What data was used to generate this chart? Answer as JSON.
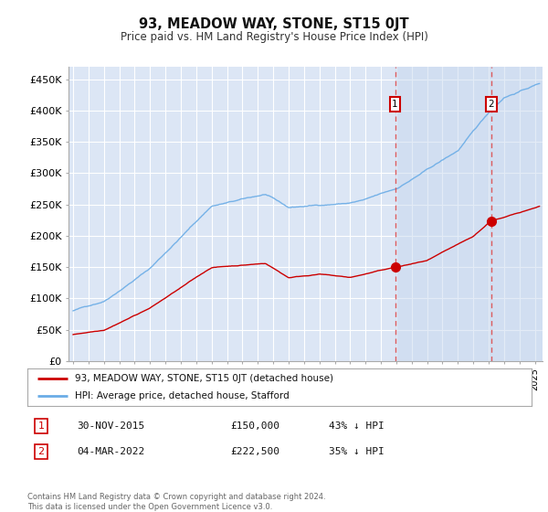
{
  "title": "93, MEADOW WAY, STONE, ST15 0JT",
  "subtitle": "Price paid vs. HM Land Registry's House Price Index (HPI)",
  "ylabel_ticks": [
    "£0",
    "£50K",
    "£100K",
    "£150K",
    "£200K",
    "£250K",
    "£300K",
    "£350K",
    "£400K",
    "£450K"
  ],
  "ylim": [
    0,
    470000
  ],
  "xlim_start": 1994.7,
  "xlim_end": 2025.5,
  "background_color": "#ffffff",
  "plot_bg_color": "#dce6f5",
  "shade_bg_color": "#e8eef8",
  "grid_color": "#ffffff",
  "hpi_color": "#6aace6",
  "price_color": "#cc0000",
  "dashed_line_color": "#dd4444",
  "annotation_box_color": "#cc0000",
  "transaction1_x": 2015.92,
  "transaction1_y": 150000,
  "transaction1_label": "1",
  "transaction2_x": 2022.17,
  "transaction2_y": 222500,
  "transaction2_label": "2",
  "legend_line1": "93, MEADOW WAY, STONE, ST15 0JT (detached house)",
  "legend_line2": "HPI: Average price, detached house, Stafford",
  "table_row1_num": "1",
  "table_row1_date": "30-NOV-2015",
  "table_row1_price": "£150,000",
  "table_row1_hpi": "43% ↓ HPI",
  "table_row2_num": "2",
  "table_row2_date": "04-MAR-2022",
  "table_row2_price": "£222,500",
  "table_row2_hpi": "35% ↓ HPI",
  "footer": "Contains HM Land Registry data © Crown copyright and database right 2024.\nThis data is licensed under the Open Government Licence v3.0."
}
